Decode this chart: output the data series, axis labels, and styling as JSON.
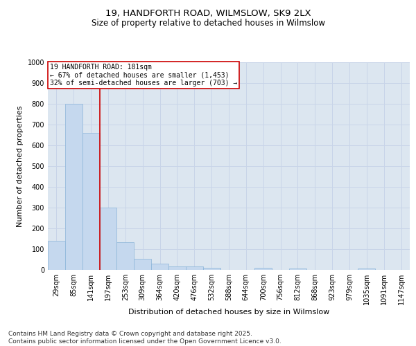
{
  "title_line1": "19, HANDFORTH ROAD, WILMSLOW, SK9 2LX",
  "title_line2": "Size of property relative to detached houses in Wilmslow",
  "xlabel": "Distribution of detached houses by size in Wilmslow",
  "ylabel": "Number of detached properties",
  "categories": [
    "29sqm",
    "85sqm",
    "141sqm",
    "197sqm",
    "253sqm",
    "309sqm",
    "364sqm",
    "420sqm",
    "476sqm",
    "532sqm",
    "588sqm",
    "644sqm",
    "700sqm",
    "756sqm",
    "812sqm",
    "868sqm",
    "923sqm",
    "979sqm",
    "1035sqm",
    "1091sqm",
    "1147sqm"
  ],
  "values": [
    140,
    800,
    660,
    300,
    135,
    55,
    30,
    18,
    18,
    10,
    0,
    0,
    10,
    0,
    8,
    0,
    0,
    0,
    8,
    0,
    0
  ],
  "bar_color": "#c5d8ee",
  "bar_edge_color": "#8ab4d8",
  "annotation_line1": "19 HANDFORTH ROAD: 181sqm",
  "annotation_line2": "← 67% of detached houses are smaller (1,453)",
  "annotation_line3": "32% of semi-detached houses are larger (703) →",
  "annotation_box_color": "#ffffff",
  "annotation_box_edge": "#cc0000",
  "marker_line_color": "#cc0000",
  "ylim": [
    0,
    1000
  ],
  "yticks": [
    0,
    100,
    200,
    300,
    400,
    500,
    600,
    700,
    800,
    900,
    1000
  ],
  "grid_color": "#c8d4e8",
  "bg_color": "#dce6f0",
  "footer_line1": "Contains HM Land Registry data © Crown copyright and database right 2025.",
  "footer_line2": "Contains public sector information licensed under the Open Government Licence v3.0.",
  "title_fontsize": 9.5,
  "subtitle_fontsize": 8.5,
  "axis_label_fontsize": 8,
  "tick_fontsize": 7,
  "annotation_fontsize": 7,
  "footer_fontsize": 6.5
}
